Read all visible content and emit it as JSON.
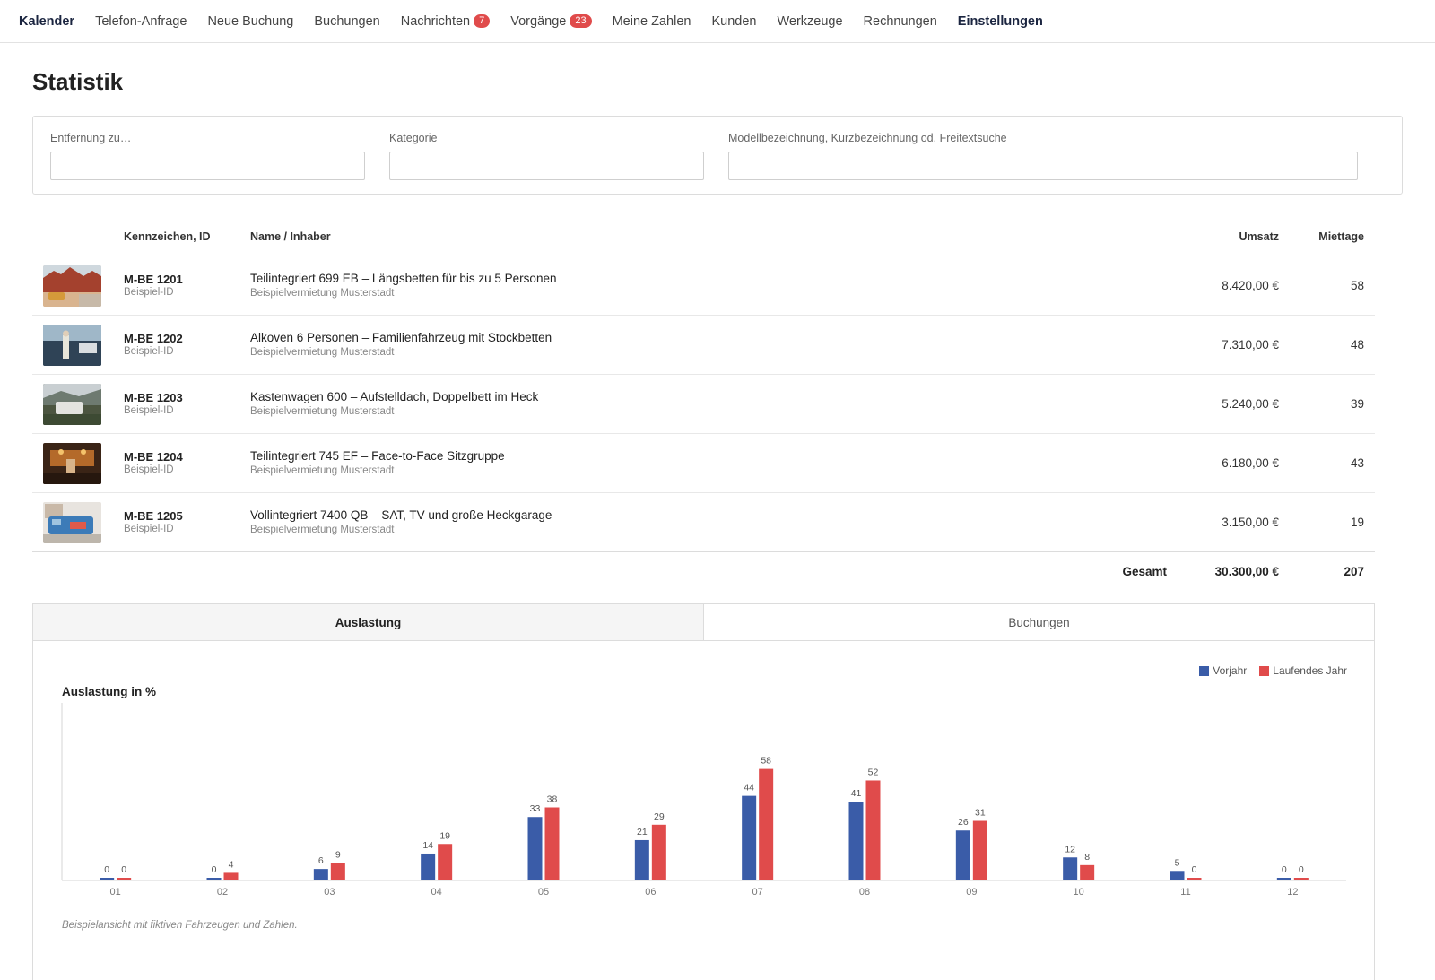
{
  "nav": [
    {
      "label": "Kalender",
      "bold": true
    },
    {
      "label": "Telefon-Anfrage"
    },
    {
      "label": "Neue Buchung"
    },
    {
      "label": "Buchungen"
    },
    {
      "label": "Nachrichten",
      "badge": "7"
    },
    {
      "label": "Vorgänge",
      "badge": "23"
    },
    {
      "label": "Meine Zahlen"
    },
    {
      "label": "Kunden"
    },
    {
      "label": "Werkzeuge"
    },
    {
      "label": "Rechnungen"
    },
    {
      "label": "Einstellungen",
      "bold": true
    }
  ],
  "page_title": "Statistik",
  "filters": {
    "distance_label": "Entfernung zu…",
    "distance_value": "",
    "category_label": "Kategorie",
    "category_value": "",
    "search_label": "Modellbezeichnung, Kurzbezeichnung od. Freitextsuche",
    "search_value": ""
  },
  "table": {
    "headers": {
      "plate": "Kennzeichen, ID",
      "name": "Name / Inhaber",
      "revenue": "Umsatz",
      "days": "Miettage"
    },
    "rows": [
      {
        "plate": "M-BE 1201",
        "id": "Beispiel-ID",
        "name": "Teilintegriert 699 EB – Längsbetten für bis zu 5 Personen",
        "owner": "Beispielvermietung Musterstadt",
        "revenue": "8.420,00 €",
        "days": "58"
      },
      {
        "plate": "M-BE 1202",
        "id": "Beispiel-ID",
        "name": "Alkoven 6 Personen – Familienfahrzeug mit Stockbetten",
        "owner": "Beispielvermietung Musterstadt",
        "revenue": "7.310,00 €",
        "days": "48"
      },
      {
        "plate": "M-BE 1203",
        "id": "Beispiel-ID",
        "name": "Kastenwagen 600 – Aufstelldach, Doppelbett im Heck",
        "owner": "Beispielvermietung Musterstadt",
        "revenue": "5.240,00 €",
        "days": "39"
      },
      {
        "plate": "M-BE 1204",
        "id": "Beispiel-ID",
        "name": "Teilintegriert 745 EF – Face-to-Face Sitzgruppe",
        "owner": "Beispielvermietung Musterstadt",
        "revenue": "6.180,00 €",
        "days": "43"
      },
      {
        "plate": "M-BE 1205",
        "id": "Beispiel-ID",
        "name": "Vollintegriert 7400 QB – SAT, TV und große Heckgarage",
        "owner": "Beispielvermietung Musterstadt",
        "revenue": "3.150,00 €",
        "days": "19"
      }
    ],
    "total_label": "Gesamt",
    "total_revenue": "30.300,00 €",
    "total_days": "207"
  },
  "tabs": {
    "active": "Auslastung",
    "inactive": "Buchungen"
  },
  "footnote": "Beispielansicht mit fiktiven Fahrzeugen und Zahlen.",
  "colors": {
    "prev_year": "#3a5ca8",
    "current_year": "#e04b4b",
    "badge": "#e04b4b"
  },
  "chart_data": {
    "type": "bar",
    "title": "Auslastung in %",
    "categories": [
      "01",
      "02",
      "03",
      "04",
      "05",
      "06",
      "07",
      "08",
      "09",
      "10",
      "11",
      "12"
    ],
    "series": [
      {
        "name": "Vorjahr",
        "values": [
          0,
          0,
          6,
          14,
          33,
          21,
          44,
          41,
          26,
          12,
          5,
          0
        ]
      },
      {
        "name": "Laufendes Jahr",
        "values": [
          0,
          4,
          9,
          19,
          38,
          29,
          58,
          52,
          31,
          8,
          0,
          0
        ]
      }
    ],
    "ylim": [
      0,
      76
    ],
    "legend": "top-right",
    "grid": false
  }
}
